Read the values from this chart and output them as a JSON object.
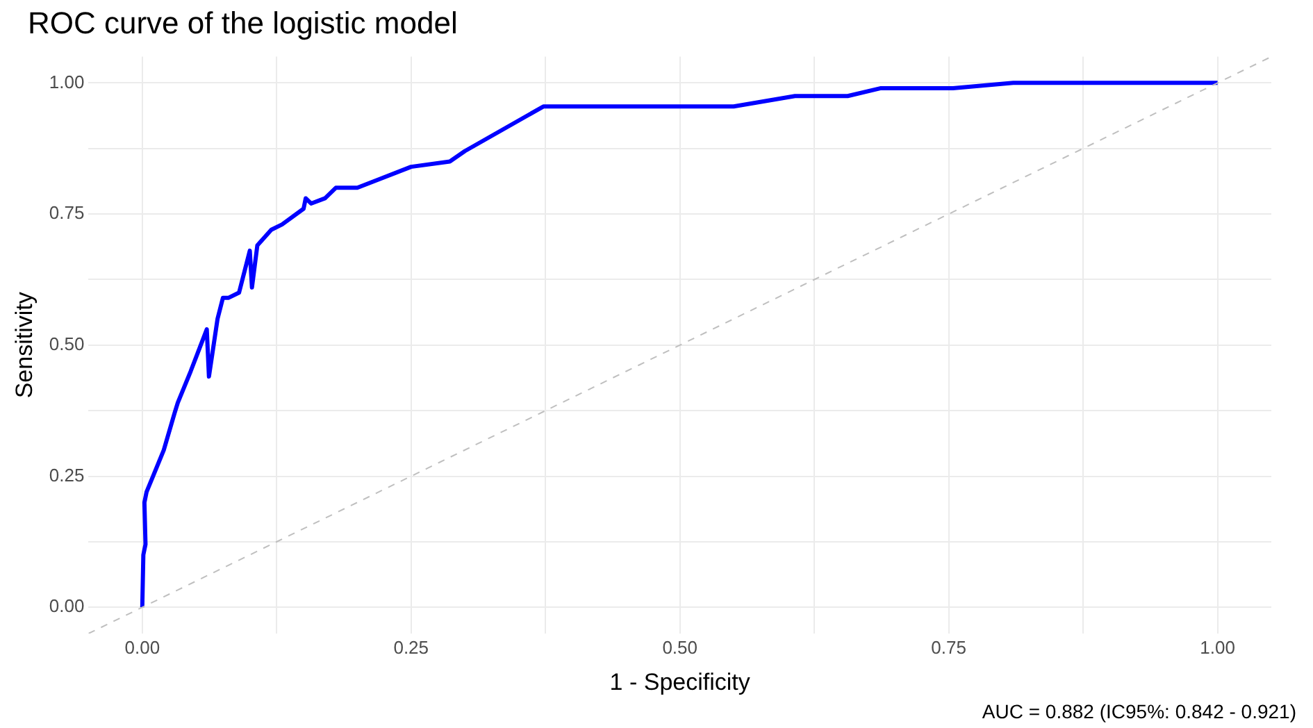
{
  "chart_data": {
    "type": "line",
    "title": "ROC curve of the logistic model",
    "xlabel": "1 - Specificity",
    "ylabel": "Sensitivity",
    "annotations": [
      "AUC = 0.882 (IC95%: 0.842 - 0.921)"
    ],
    "xlim": [
      -0.05,
      1.05
    ],
    "ylim": [
      -0.05,
      1.05
    ],
    "xticks": [
      {
        "value": 0,
        "label": "0.00"
      },
      {
        "value": 0.125,
        "label": null
      },
      {
        "value": 0.25,
        "label": "0.25"
      },
      {
        "value": 0.375,
        "label": null
      },
      {
        "value": 0.5,
        "label": "0.50"
      },
      {
        "value": 0.625,
        "label": null
      },
      {
        "value": 0.75,
        "label": "0.75"
      },
      {
        "value": 0.875,
        "label": null
      },
      {
        "value": 1,
        "label": "1.00"
      }
    ],
    "yticks": [
      {
        "value": 0,
        "label": "0.00"
      },
      {
        "value": 0.125,
        "label": null
      },
      {
        "value": 0.25,
        "label": "0.25"
      },
      {
        "value": 0.375,
        "label": null
      },
      {
        "value": 0.5,
        "label": "0.50"
      },
      {
        "value": 0.625,
        "label": null
      },
      {
        "value": 0.75,
        "label": "0.75"
      },
      {
        "value": 0.875,
        "label": null
      },
      {
        "value": 1,
        "label": "1.00"
      }
    ],
    "grid": true,
    "legend": false,
    "marker": "none",
    "series": [
      {
        "color": "#bfbfbf",
        "line_style": "dashed",
        "x": [
          -0.05,
          1.05
        ],
        "values": [
          -0.05,
          1.05
        ]
      },
      {
        "color": "#0000ff",
        "line_style": "solid",
        "x": [
          0,
          0.001,
          0.003,
          0.002,
          0.004,
          0.01,
          0.02,
          0.03,
          0.033,
          0.045,
          0.06,
          0.062,
          0.07,
          0.075,
          0.08,
          0.09,
          0.1,
          0.102,
          0.107,
          0.12,
          0.13,
          0.15,
          0.152,
          0.157,
          0.17,
          0.18,
          0.2,
          0.25,
          0.286,
          0.3,
          0.373,
          0.55,
          0.607,
          0.656,
          0.687,
          0.754,
          0.81,
          1
        ],
        "values": [
          0,
          0.1,
          0.12,
          0.2,
          0.22,
          0.25,
          0.3,
          0.37,
          0.39,
          0.45,
          0.53,
          0.44,
          0.55,
          0.59,
          0.59,
          0.6,
          0.68,
          0.61,
          0.69,
          0.72,
          0.73,
          0.76,
          0.78,
          0.77,
          0.78,
          0.8,
          0.8,
          0.84,
          0.85,
          0.87,
          0.955,
          0.955,
          0.975,
          0.975,
          0.99,
          0.99,
          1,
          1
        ]
      }
    ]
  }
}
